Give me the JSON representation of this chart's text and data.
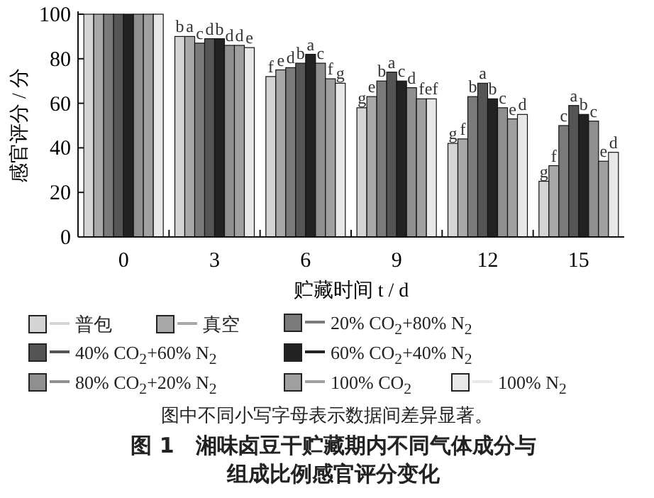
{
  "chart_data": {
    "type": "bar",
    "title": "图 1　湘味卤豆干贮藏期内不同气体成分与组成比例感官评分变化",
    "xlabel": "贮藏时间 t / d",
    "ylabel": "感官评分 / 分",
    "annotations": [
      "图中不同小写字母表示数据间差异显著。"
    ],
    "categories": [
      "0",
      "3",
      "6",
      "9",
      "12",
      "15"
    ],
    "ylim": [
      0,
      100
    ],
    "yticks": [
      0,
      20,
      40,
      60,
      80,
      100
    ],
    "legend": "bottom",
    "series": [
      {
        "name": "普包",
        "color": "#d4d4d4",
        "values": [
          100,
          90,
          72,
          58,
          42,
          25
        ],
        "value_labels": [
          null,
          "b",
          "f",
          "g",
          "g",
          "g"
        ]
      },
      {
        "name": "真空",
        "color": "#a8a8a8",
        "values": [
          100,
          90,
          75,
          63,
          44,
          32
        ],
        "value_labels": [
          null,
          "a",
          "e",
          "e",
          "f",
          "f"
        ]
      },
      {
        "name": "20% CO$_{2}$+80% N$_{2}$",
        "color": "#7a7a7a",
        "values": [
          100,
          87,
          76,
          70,
          63,
          50
        ],
        "value_labels": [
          null,
          "c",
          "d",
          "b",
          "b",
          "c"
        ]
      },
      {
        "name": "40% CO$_{2}$+60% N$_{2}$",
        "color": "#555555",
        "values": [
          100,
          89,
          78,
          74,
          69,
          59
        ],
        "value_labels": [
          null,
          "d",
          "b",
          "a",
          "a",
          "a"
        ]
      },
      {
        "name": "60% CO$_{2}$+40% N$_{2}$",
        "color": "#222222",
        "values": [
          100,
          89,
          82,
          70,
          62,
          55
        ],
        "value_labels": [
          null,
          "b",
          "a",
          "c",
          "b",
          "b"
        ]
      },
      {
        "name": "80% CO$_{2}$+20% N$_{2}$",
        "color": "#8f8f8f",
        "values": [
          100,
          86,
          78,
          67,
          58,
          52
        ],
        "value_labels": [
          null,
          "d",
          "c",
          "d",
          "c",
          "c"
        ]
      },
      {
        "name": "100% CO$_{2}$",
        "color": "#a0a0a0",
        "values": [
          100,
          86,
          71,
          62,
          53,
          34
        ],
        "value_labels": [
          null,
          "d",
          "f",
          "f",
          "e",
          "e"
        ]
      },
      {
        "name": "100% N$_{2}$",
        "color": "#e8e8e8",
        "values": [
          100,
          85,
          69,
          62,
          55,
          38
        ],
        "value_labels": [
          null,
          "e",
          "g",
          "ef",
          "d",
          "d"
        ]
      }
    ]
  }
}
